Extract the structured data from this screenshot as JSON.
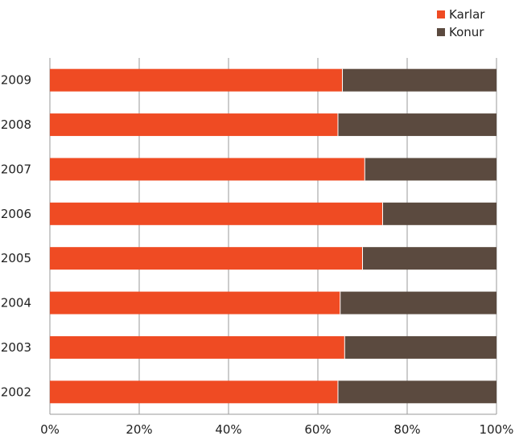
{
  "chart_data": {
    "type": "bar",
    "orientation": "horizontal",
    "stacking": "percent",
    "categories": [
      "2009",
      "2008",
      "2007",
      "2006",
      "2005",
      "2004",
      "2003",
      "2002"
    ],
    "series": [
      {
        "name": "Karlar",
        "color": "#ef4b23",
        "values": [
          65.5,
          64.5,
          70.5,
          74.5,
          70.0,
          65.0,
          66.0,
          64.5
        ]
      },
      {
        "name": "Konur",
        "color": "#5b4a3f",
        "values": [
          34.5,
          35.5,
          29.5,
          25.5,
          30.0,
          35.0,
          34.0,
          35.5
        ]
      }
    ],
    "xlim": [
      0,
      100
    ],
    "xticks": [
      0,
      20,
      40,
      60,
      80,
      100
    ],
    "xtick_labels": [
      "0%",
      "20%",
      "40%",
      "60%",
      "80%",
      "100%"
    ],
    "grid": "vertical",
    "legend_position": "top-right",
    "title": "",
    "xlabel": "",
    "ylabel": ""
  }
}
